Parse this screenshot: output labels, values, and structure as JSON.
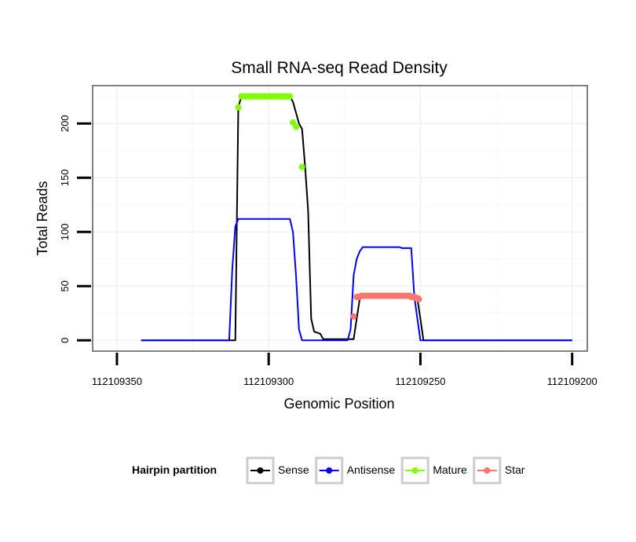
{
  "chart_data": {
    "type": "line",
    "title": "Small RNA-seq Read Density",
    "xlabel": "Genomic Position",
    "ylabel": "Total Reads",
    "xlim": [
      112109358,
      112109195
    ],
    "ylim": [
      -10,
      235
    ],
    "x_reversed": true,
    "x_ticks": [
      112109350,
      112109300,
      112109250,
      112109200
    ],
    "x_tick_labels": [
      "112109350",
      "112109300",
      "112109250",
      "112109200"
    ],
    "y_ticks": [
      0,
      50,
      100,
      150,
      200
    ],
    "y_tick_labels": [
      "0",
      "50",
      "100",
      "150",
      "200"
    ],
    "grid": true,
    "legend": {
      "title": "Hairpin partition",
      "position": "bottom",
      "entries": [
        "Sense",
        "Antisense",
        "Mature",
        "Star"
      ]
    },
    "series": [
      {
        "name": "Sense",
        "kind": "line",
        "color": "#000000",
        "x": [
          112109342,
          112109311,
          112109310,
          112109309,
          112109308,
          112109293,
          112109292,
          112109291,
          112109290,
          112109289,
          112109288,
          112109287,
          112109286,
          112109285,
          112109284,
          112109283,
          112109282,
          112109273,
          112109272,
          112109271,
          112109270,
          112109269,
          112109268,
          112109267,
          112109266,
          112109265,
          112109264,
          112109254,
          112109253,
          112109252,
          112109251,
          112109250,
          112109249,
          112109200
        ],
        "y": [
          0,
          0,
          215,
          225,
          225,
          225,
          220,
          210,
          200,
          195,
          160,
          120,
          20,
          8,
          7,
          6,
          1,
          1,
          1,
          20,
          38,
          40,
          41,
          41,
          41,
          41,
          41,
          41,
          41,
          39,
          38,
          20,
          0,
          0
        ]
      },
      {
        "name": "Antisense",
        "kind": "line",
        "color": "#0000ff",
        "x": [
          112109342,
          112109313,
          112109312,
          112109311,
          112109310,
          112109294,
          112109293,
          112109292,
          112109291,
          112109290,
          112109289,
          112109285,
          112109274,
          112109273,
          112109272,
          112109271,
          112109270,
          112109269,
          112109268,
          112109262,
          112109257,
          112109256,
          112109255,
          112109254,
          112109253,
          112109252,
          112109250,
          112109200
        ],
        "y": [
          0,
          0,
          65,
          105,
          112,
          112,
          112,
          100,
          60,
          10,
          0,
          0,
          0,
          10,
          60,
          75,
          82,
          86,
          86,
          86,
          86,
          85,
          85,
          85,
          85,
          40,
          0,
          0
        ]
      },
      {
        "name": "Mature",
        "kind": "points",
        "color": "#7fff00",
        "x": [
          112109310,
          112109309,
          112109308.5,
          112109308,
          112109307.5,
          112109307,
          112109306.5,
          112109306,
          112109305.5,
          112109305,
          112109304.5,
          112109304,
          112109303.5,
          112109303,
          112109302.5,
          112109302,
          112109301.5,
          112109301,
          112109300.5,
          112109300,
          112109299.5,
          112109299,
          112109298.5,
          112109298,
          112109297.5,
          112109297,
          112109296.5,
          112109296,
          112109295.5,
          112109295,
          112109294.5,
          112109294,
          112109293.5,
          112109293,
          112109292,
          112109291,
          112109289
        ],
        "y": [
          215,
          225,
          225,
          225,
          225,
          225,
          225,
          225,
          225,
          225,
          225,
          225,
          225,
          225,
          225,
          225,
          225,
          225,
          225,
          225,
          225,
          225,
          225,
          225,
          225,
          225,
          225,
          225,
          225,
          225,
          225,
          225,
          225,
          225,
          201,
          197,
          160
        ]
      },
      {
        "name": "Star",
        "kind": "points",
        "color": "#f8766d",
        "x": [
          112109272,
          112109271,
          112109270.5,
          112109270,
          112109269.5,
          112109269,
          112109268.5,
          112109268,
          112109267.5,
          112109267,
          112109266.5,
          112109266,
          112109265.5,
          112109265,
          112109264.5,
          112109264,
          112109263.5,
          112109263,
          112109262.5,
          112109262,
          112109261.5,
          112109261,
          112109260.5,
          112109260,
          112109259.5,
          112109259,
          112109258.5,
          112109258,
          112109257.5,
          112109257,
          112109256.5,
          112109256,
          112109255.5,
          112109255,
          112109254.5,
          112109254,
          112109253.5,
          112109253,
          112109252.5,
          112109252,
          112109251.5,
          112109251,
          112109250.5
        ],
        "y": [
          22,
          40,
          40,
          40,
          41,
          41,
          41,
          41,
          41,
          41,
          41,
          41,
          41,
          41,
          41,
          41,
          41,
          41,
          41,
          41,
          41,
          41,
          41,
          41,
          41,
          41,
          41,
          41,
          41,
          41,
          41,
          41,
          41,
          41,
          41,
          41,
          41,
          40,
          40,
          40,
          39,
          39,
          38
        ]
      }
    ]
  }
}
